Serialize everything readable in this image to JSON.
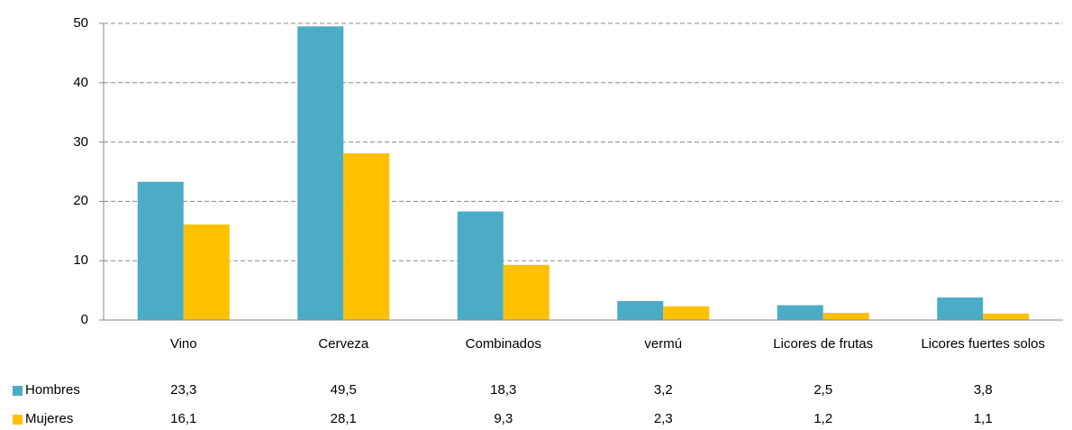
{
  "chart_data": {
    "type": "bar",
    "categories": [
      "Vino",
      "Cerveza",
      "Combinados",
      "vermú",
      "Licores de frutas",
      "Licores fuertes solos"
    ],
    "series": [
      {
        "name": "Hombres",
        "color": "#4bacc6",
        "values": [
          23.3,
          49.5,
          18.3,
          3.2,
          2.5,
          3.8
        ],
        "value_labels": [
          "23,3",
          "49,5",
          "18,3",
          "3,2",
          "2,5",
          "3,8"
        ]
      },
      {
        "name": "Mujeres",
        "color": "#ffc000",
        "values": [
          16.1,
          28.1,
          9.3,
          2.3,
          1.2,
          1.1
        ],
        "value_labels": [
          "16,1",
          "28,1",
          "9,3",
          "2,3",
          "1,2",
          "1,1"
        ]
      }
    ],
    "ylim": [
      0,
      50
    ],
    "yticks": [
      0,
      10,
      20,
      30,
      40,
      50
    ],
    "grid": true
  }
}
